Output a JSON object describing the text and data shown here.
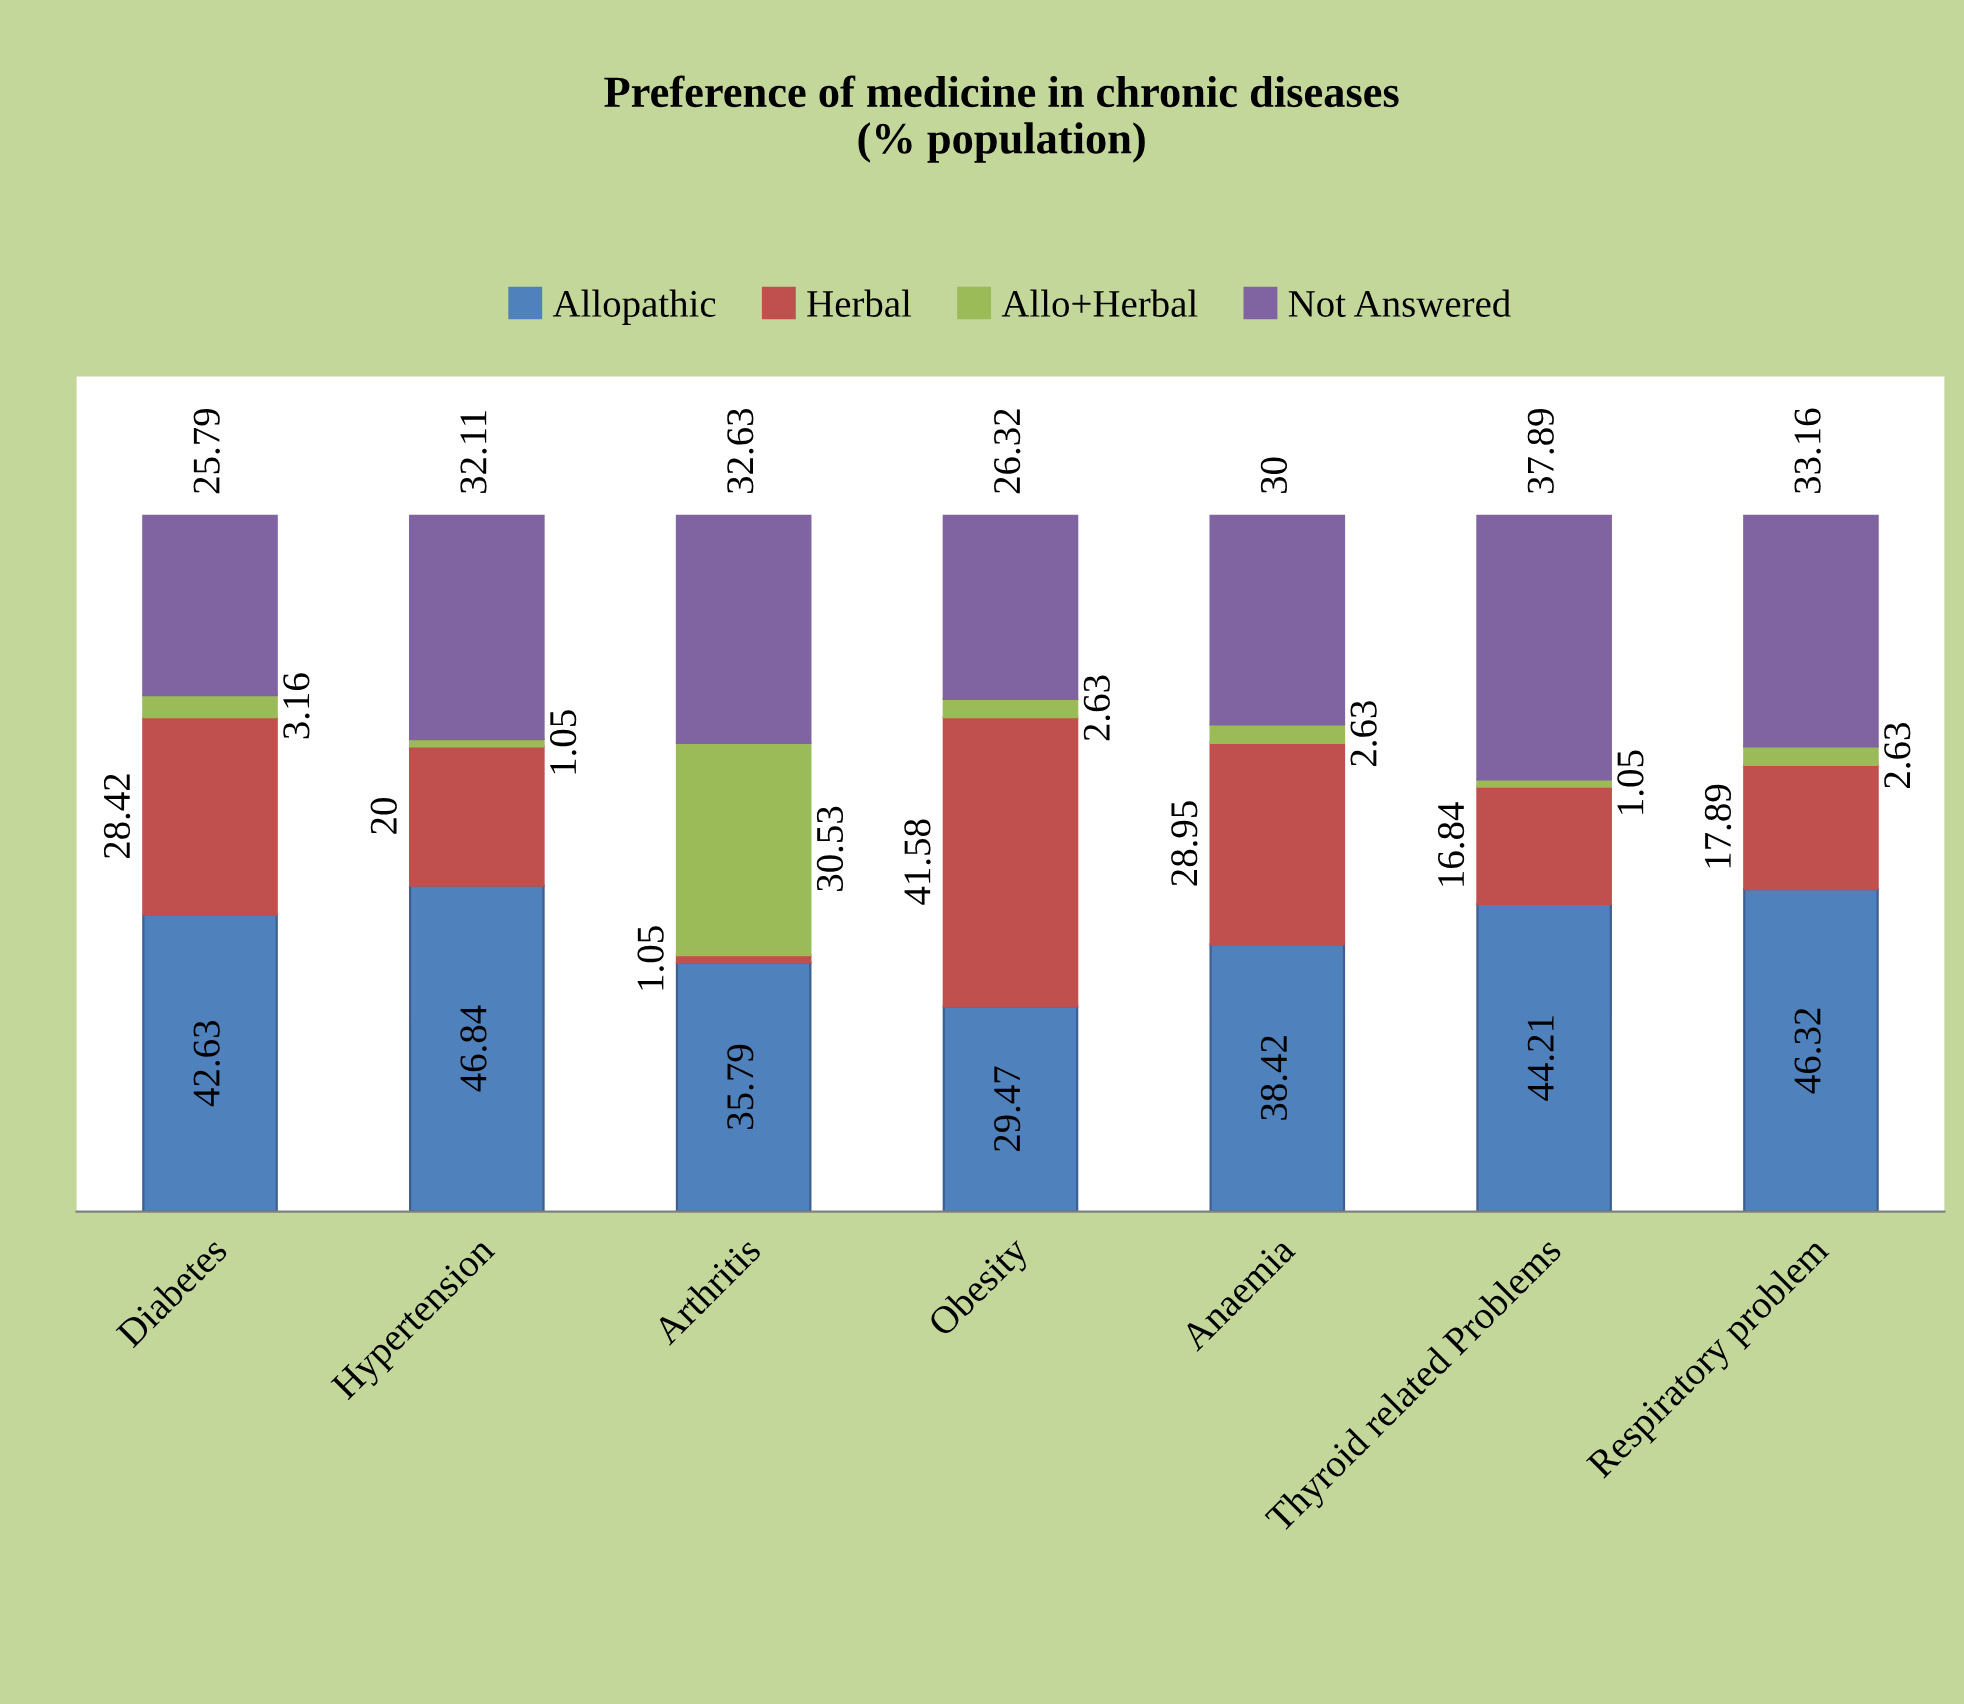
{
  "chart_data": {
    "type": "bar",
    "stacked": true,
    "title": "Preference of medicine in chronic diseases\n(% population)",
    "categories": [
      "Diabetes",
      "Hypertension",
      "Arthritis",
      "Obesity",
      "Anaemia",
      "Thyroid related Problems",
      "Respiratory problem"
    ],
    "series": [
      {
        "name": "Allopathic",
        "color": "#4f81bd",
        "values": [
          42.63,
          46.84,
          35.79,
          29.47,
          38.42,
          44.21,
          46.32
        ]
      },
      {
        "name": "Herbal",
        "color": "#c0504d",
        "values": [
          28.42,
          20,
          1.05,
          41.58,
          28.95,
          16.84,
          17.89
        ]
      },
      {
        "name": "Allo+Herbal",
        "color": "#9bbb59",
        "values": [
          3.16,
          1.05,
          30.53,
          2.63,
          2.63,
          1.05,
          2.63
        ]
      },
      {
        "name": "Not Answered",
        "color": "#8064a2",
        "values": [
          25.79,
          32.11,
          32.63,
          26.32,
          30,
          37.89,
          33.16
        ]
      }
    ],
    "ylim": [
      0,
      120
    ],
    "tick_labels": "x",
    "data_labels": true,
    "legend": "top",
    "grid": false
  }
}
